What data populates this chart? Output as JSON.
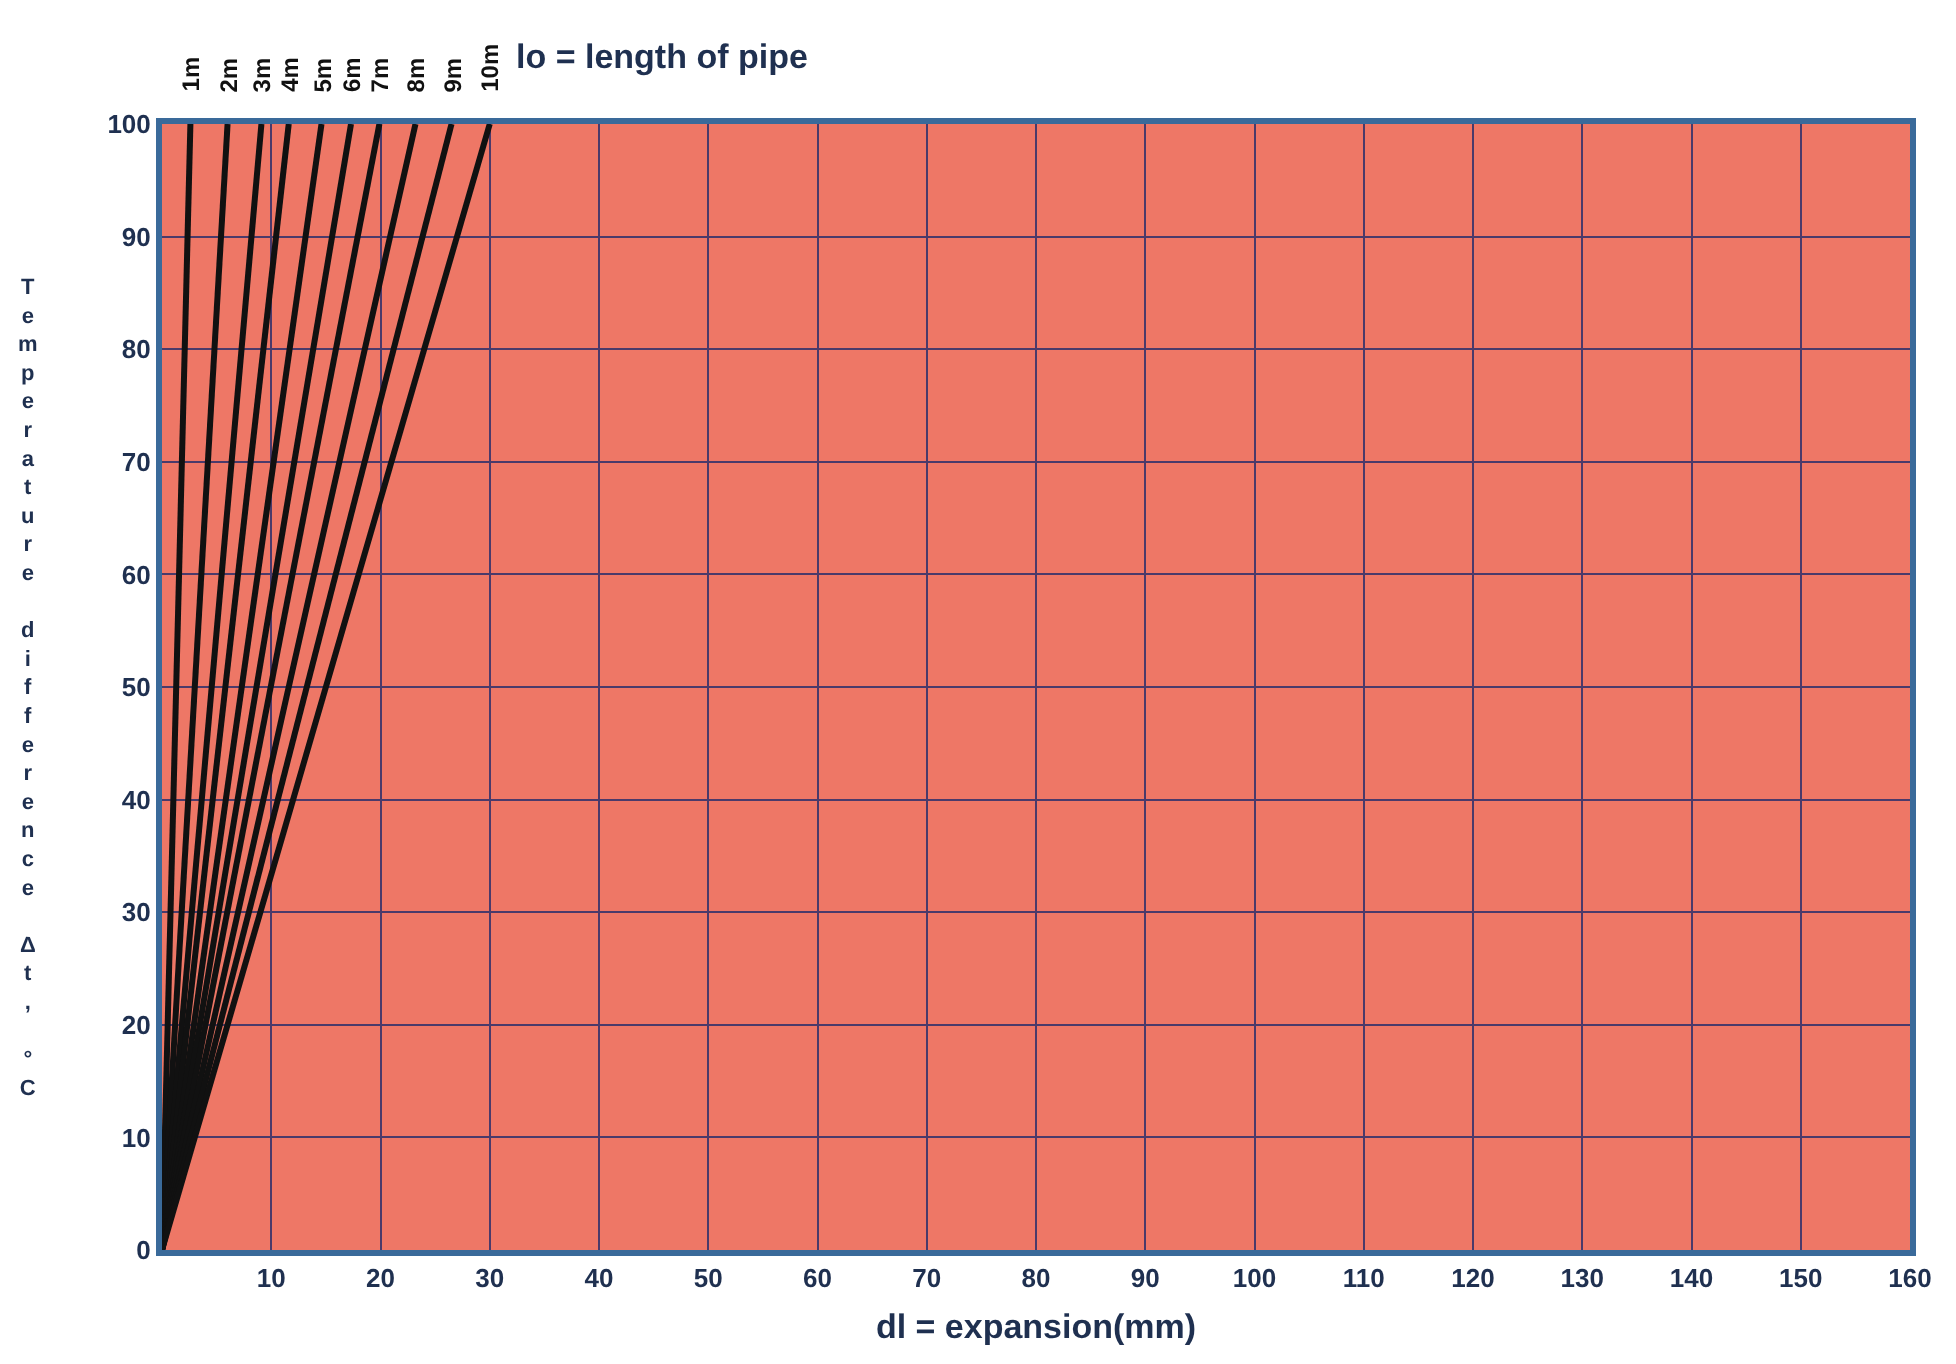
{
  "chart_data": {
    "type": "line",
    "title": "lo = length of pipe",
    "xlabel": "dl = expansion(mm)",
    "ylabel": "Temperature difference Δt, °C",
    "xlim": [
      0,
      160
    ],
    "xticks": [
      10,
      20,
      30,
      40,
      50,
      60,
      70,
      80,
      90,
      100,
      110,
      120,
      130,
      140,
      150,
      160
    ],
    "ylim": [
      0,
      100
    ],
    "yticks": [
      0,
      10,
      20,
      30,
      40,
      50,
      60,
      70,
      80,
      90,
      100
    ],
    "grid": true,
    "legend": false,
    "marker": "none",
    "line_style": "solid",
    "series": [
      {
        "name": "1m",
        "color": "#111111",
        "x": [
          0,
          2.6
        ],
        "values": [
          0,
          100
        ]
      },
      {
        "name": "2m",
        "color": "#111111",
        "x": [
          0,
          6
        ],
        "values": [
          0,
          100
        ]
      },
      {
        "name": "3m",
        "color": "#111111",
        "x": [
          0,
          9.1
        ],
        "values": [
          0,
          100
        ]
      },
      {
        "name": "4m",
        "color": "#111111",
        "x": [
          0,
          11.6
        ],
        "values": [
          0,
          100
        ]
      },
      {
        "name": "5m",
        "color": "#111111",
        "x": [
          0,
          14.6
        ],
        "values": [
          0,
          100
        ]
      },
      {
        "name": "6m",
        "color": "#111111",
        "x": [
          0,
          17.3
        ],
        "values": [
          0,
          100
        ]
      },
      {
        "name": "7m",
        "color": "#111111",
        "x": [
          0,
          19.9
        ],
        "values": [
          0,
          100
        ]
      },
      {
        "name": "8m",
        "color": "#111111",
        "x": [
          0,
          23.2
        ],
        "values": [
          0,
          100
        ]
      },
      {
        "name": "9m",
        "color": "#111111",
        "x": [
          0,
          26.5
        ],
        "values": [
          0,
          100
        ]
      },
      {
        "name": "10m",
        "color": "#111111",
        "x": [
          0,
          30
        ],
        "values": [
          0,
          100
        ]
      }
    ]
  }
}
